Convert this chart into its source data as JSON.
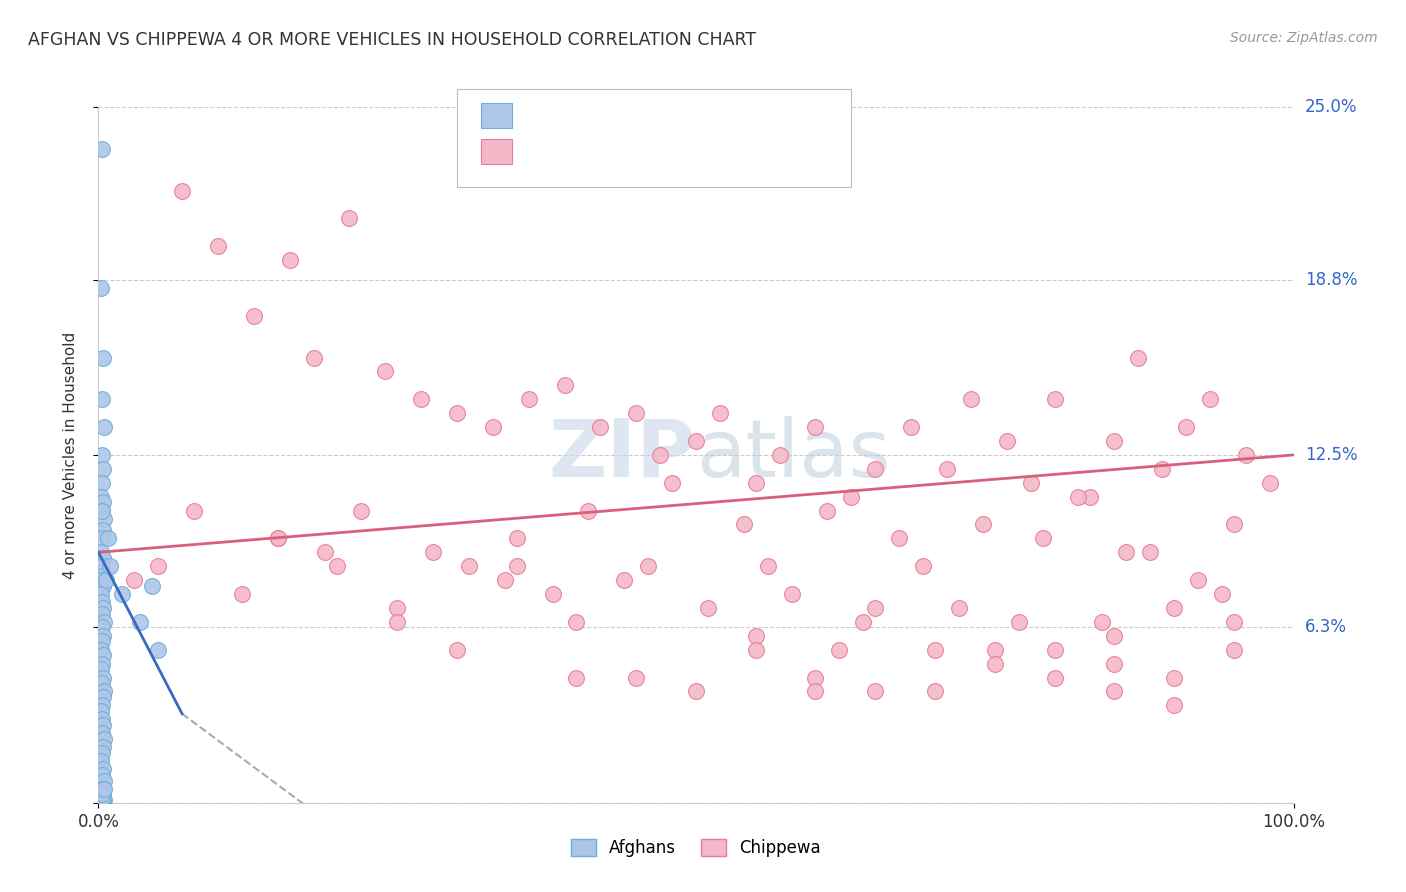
{
  "title": "AFGHAN VS CHIPPEWA 4 OR MORE VEHICLES IN HOUSEHOLD CORRELATION CHART",
  "source_text": "Source: ZipAtlas.com",
  "ylabel": "4 or more Vehicles in Household",
  "xlim": [
    0,
    100
  ],
  "ylim": [
    0,
    25
  ],
  "ytick_positions": [
    0,
    6.3,
    12.5,
    18.8,
    25.0
  ],
  "yticklabels": [
    "",
    "6.3%",
    "12.5%",
    "18.8%",
    "25.0%"
  ],
  "grid_color": "#cccccc",
  "background_color": "#ffffff",
  "afghan_color": "#aec6e8",
  "afghan_edge_color": "#6baed6",
  "chippewa_color": "#f4b8c8",
  "chippewa_edge_color": "#e8799a",
  "legend_color": "#3366cc",
  "watermark_color": "#c8d8e8",
  "afghan_line_color": "#3a6abf",
  "chippewa_line_color": "#d9607a",
  "dash_color": "#aaaaaa",
  "afghan_scatter_x": [
    0.3,
    0.2,
    0.4,
    0.3,
    0.5,
    0.3,
    0.4,
    0.3,
    0.2,
    0.4,
    0.3,
    0.5,
    0.4,
    0.3,
    0.2,
    0.4,
    0.3,
    0.5,
    0.3,
    0.4,
    0.2,
    0.3,
    0.4,
    0.3,
    0.5,
    0.3,
    0.4,
    0.3,
    0.2,
    0.4,
    0.3,
    0.2,
    0.4,
    0.3,
    0.5,
    0.4,
    0.3,
    0.2,
    0.3,
    0.4,
    0.3,
    0.5,
    0.4,
    0.3,
    0.2,
    0.4,
    0.3,
    0.5,
    0.3,
    0.4,
    0.3,
    0.2,
    0.4,
    0.3,
    0.5,
    0.4,
    0.3,
    0.2,
    0.4,
    0.3,
    0.5,
    0.6,
    0.8,
    0.3,
    1.0,
    2.0,
    3.5,
    5.0,
    4.5
  ],
  "afghan_scatter_y": [
    23.5,
    18.5,
    16.0,
    14.5,
    13.5,
    12.5,
    12.0,
    11.5,
    11.0,
    10.8,
    10.5,
    10.2,
    9.8,
    9.5,
    9.0,
    8.8,
    8.5,
    8.2,
    8.0,
    7.8,
    7.5,
    7.2,
    7.0,
    6.8,
    6.5,
    6.3,
    6.0,
    5.8,
    5.5,
    5.3,
    5.0,
    4.8,
    4.5,
    4.3,
    4.0,
    3.8,
    3.5,
    3.3,
    3.0,
    2.8,
    2.5,
    2.3,
    2.0,
    1.8,
    1.5,
    1.2,
    1.0,
    0.8,
    0.5,
    0.3,
    0.2,
    0.1,
    0.1,
    0.1,
    0.1,
    0.1,
    0.1,
    0.1,
    0.2,
    0.3,
    0.5,
    8.0,
    9.5,
    10.5,
    8.5,
    7.5,
    6.5,
    5.5,
    7.8
  ],
  "chippewa_scatter_x": [
    3,
    7,
    10,
    13,
    16,
    18,
    21,
    24,
    27,
    30,
    33,
    36,
    39,
    42,
    45,
    47,
    50,
    52,
    55,
    57,
    60,
    63,
    65,
    68,
    71,
    73,
    76,
    78,
    80,
    83,
    85,
    87,
    89,
    91,
    93,
    96,
    98,
    15,
    22,
    28,
    35,
    41,
    48,
    54,
    61,
    67,
    74,
    82,
    88,
    95,
    8,
    19,
    31,
    44,
    56,
    69,
    79,
    86,
    92,
    12,
    25,
    38,
    51,
    64,
    77,
    90,
    20,
    34,
    46,
    58,
    72,
    84,
    94,
    5,
    40,
    62,
    75,
    85,
    95,
    55,
    70,
    80,
    90,
    30,
    50,
    60,
    70,
    80,
    90,
    45,
    65,
    85,
    25,
    55,
    75,
    15,
    35,
    65,
    85,
    95,
    40,
    60
  ],
  "chippewa_scatter_y": [
    8.0,
    22.0,
    20.0,
    17.5,
    19.5,
    16.0,
    21.0,
    15.5,
    14.5,
    14.0,
    13.5,
    14.5,
    15.0,
    13.5,
    14.0,
    12.5,
    13.0,
    14.0,
    11.5,
    12.5,
    13.5,
    11.0,
    12.0,
    13.5,
    12.0,
    14.5,
    13.0,
    11.5,
    14.5,
    11.0,
    13.0,
    16.0,
    12.0,
    13.5,
    14.5,
    12.5,
    11.5,
    9.5,
    10.5,
    9.0,
    9.5,
    10.5,
    11.5,
    10.0,
    10.5,
    9.5,
    10.0,
    11.0,
    9.0,
    10.0,
    10.5,
    9.0,
    8.5,
    8.0,
    8.5,
    8.5,
    9.5,
    9.0,
    8.0,
    7.5,
    7.0,
    7.5,
    7.0,
    6.5,
    6.5,
    7.0,
    8.5,
    8.0,
    8.5,
    7.5,
    7.0,
    6.5,
    7.5,
    8.5,
    6.5,
    5.5,
    5.5,
    5.0,
    6.5,
    6.0,
    5.5,
    5.5,
    4.5,
    5.5,
    4.0,
    4.5,
    4.0,
    4.5,
    3.5,
    4.5,
    4.0,
    4.0,
    6.5,
    5.5,
    5.0,
    9.5,
    8.5,
    7.0,
    6.0,
    5.5,
    4.5,
    4.0
  ]
}
